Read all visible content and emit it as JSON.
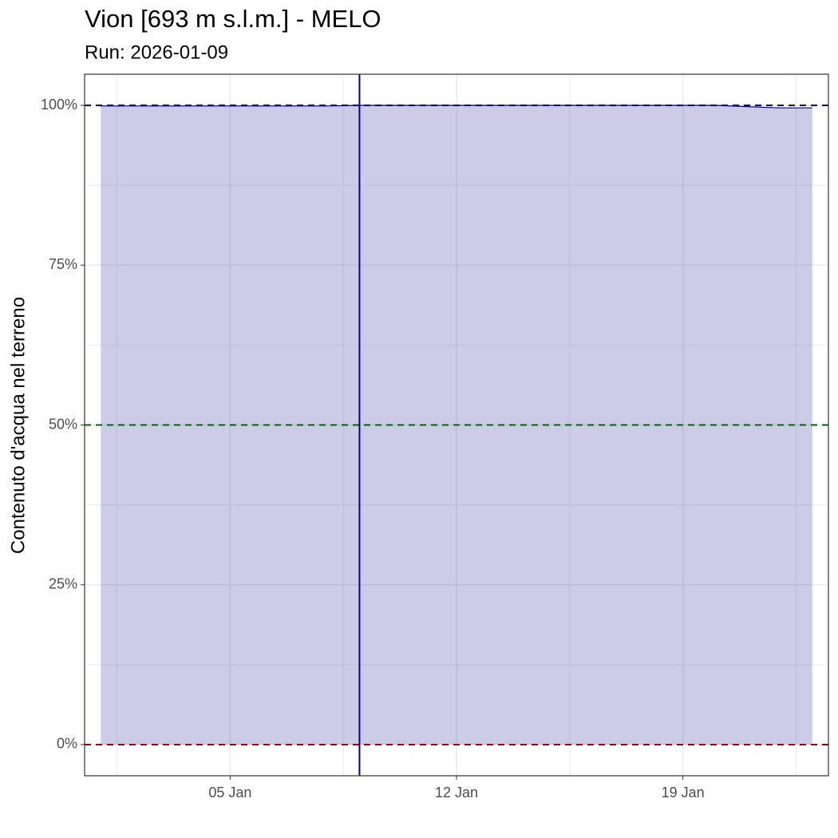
{
  "chart_data": {
    "type": "area",
    "title": "Vion [693 m s.l.m.] - MELO",
    "subtitle": "Run: 2026-01-09",
    "y_label": "Contenuto d'acqua nel terreno",
    "x": [
      1,
      2,
      3,
      4,
      5,
      6,
      7,
      8,
      9,
      10,
      11,
      12,
      13,
      14,
      15,
      16,
      17,
      18,
      19,
      20,
      21,
      22,
      23
    ],
    "values": [
      99.9,
      99.9,
      99.9,
      99.9,
      99.9,
      99.9,
      99.9,
      99.9,
      100,
      100,
      100,
      100,
      100,
      100,
      100,
      100,
      100,
      100,
      100,
      100,
      99.8,
      99.6,
      99.6
    ],
    "color": "#00008b",
    "fill_opacity": 0.2,
    "xlim": [
      0.5,
      23.5
    ],
    "xticks": [
      {
        "value": 5,
        "label": "05 Jan"
      },
      {
        "value": 12,
        "label": "12 Jan"
      },
      {
        "value": 19,
        "label": "19 Jan"
      }
    ],
    "ylim": [
      -4.87,
      104.87
    ],
    "yticks": [
      {
        "value": 0,
        "label": "0%"
      },
      {
        "value": 25,
        "label": "25%"
      },
      {
        "value": 50,
        "label": "50%"
      },
      {
        "value": 75,
        "label": "75%"
      },
      {
        "value": 100,
        "label": "100%"
      }
    ],
    "grid": true,
    "hlines": [
      {
        "value": 100,
        "color": "#00008b"
      },
      {
        "value": 50,
        "color": "#006400"
      },
      {
        "value": 0,
        "color": "#8b0000"
      }
    ],
    "vline": {
      "value": 9,
      "color": "#00008b"
    }
  }
}
